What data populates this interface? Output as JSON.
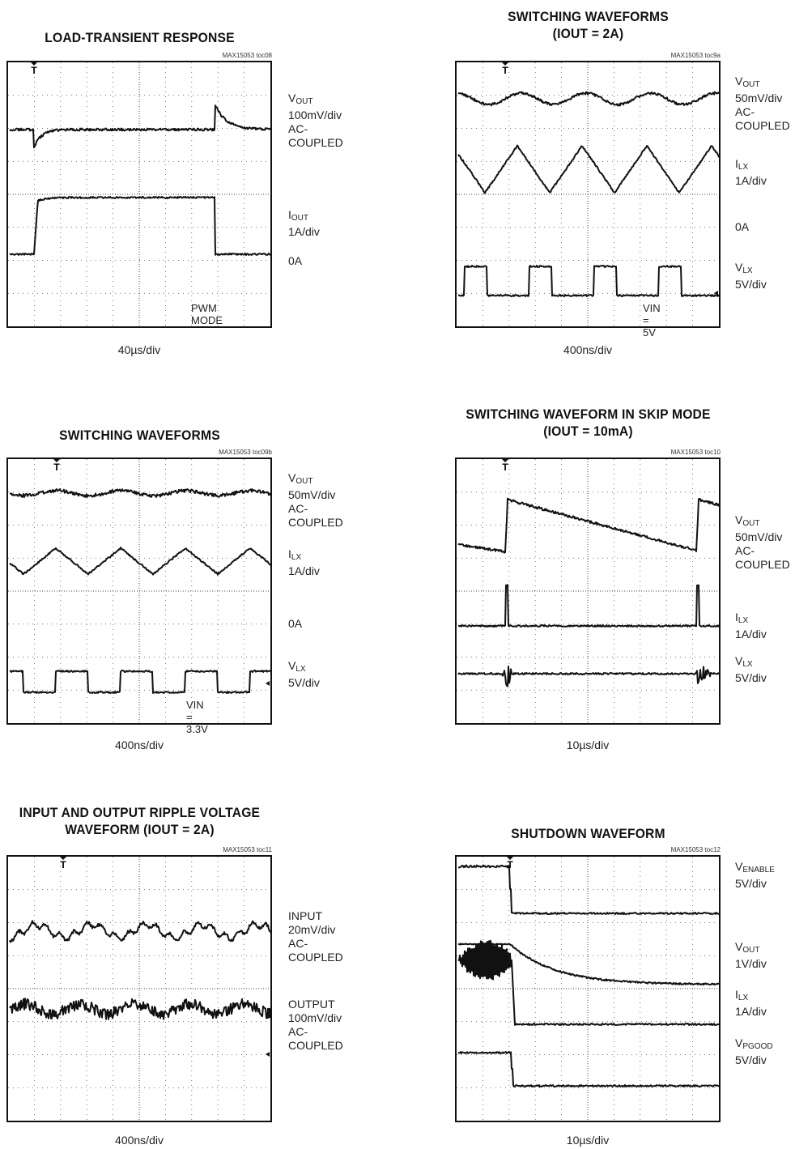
{
  "panels": [
    {
      "title": [
        "LOAD-TRANSIENT RESPONSE"
      ],
      "toc": "MAX15053 toc08",
      "timebase": "40µs/div",
      "inset": "PWM MODE",
      "labels": [
        {
          "main": "V",
          "sub": "OUT",
          "lines": [
            "100mV/div",
            "AC-COUPLED"
          ]
        },
        {
          "main": "I",
          "sub": "OUT",
          "lines": [
            "1A/div"
          ]
        },
        {
          "main": "0A",
          "sub": "",
          "lines": []
        }
      ]
    },
    {
      "title": [
        "SWITCHING WAVEFORMS",
        "(IOUT = 2A)"
      ],
      "toc": "MAX15053 toc9a",
      "timebase": "400ns/div",
      "inset": "VIN = 5V",
      "labels": [
        {
          "main": "V",
          "sub": "OUT",
          "lines": [
            "50mV/div",
            "AC-COUPLED"
          ]
        },
        {
          "main": "I",
          "sub": "LX",
          "lines": [
            "1A/div"
          ]
        },
        {
          "main": "0A",
          "sub": "",
          "lines": []
        },
        {
          "main": "V",
          "sub": "LX",
          "lines": [
            "5V/div"
          ]
        }
      ]
    },
    {
      "title": [
        "SWITCHING WAVEFORMS"
      ],
      "toc": "MAX15053 toc09b",
      "timebase": "400ns/div",
      "inset": "VIN = 3.3V",
      "labels": [
        {
          "main": "V",
          "sub": "OUT",
          "lines": [
            "50mV/div",
            "AC-COUPLED"
          ]
        },
        {
          "main": "I",
          "sub": "LX",
          "lines": [
            "1A/div"
          ]
        },
        {
          "main": "0A",
          "sub": "",
          "lines": []
        },
        {
          "main": "V",
          "sub": "LX",
          "lines": [
            "5V/div"
          ]
        }
      ]
    },
    {
      "title": [
        "SWITCHING WAVEFORM IN SKIP MODE",
        "(IOUT = 10mA)"
      ],
      "toc": "MAX15053 toc10",
      "timebase": "10µs/div",
      "inset": "",
      "labels": [
        {
          "main": "V",
          "sub": "OUT",
          "lines": [
            "50mV/div",
            "AC-COUPLED"
          ]
        },
        {
          "main": "I",
          "sub": "LX",
          "lines": [
            "1A/div"
          ]
        },
        {
          "main": "V",
          "sub": "LX",
          "lines": [
            "5V/div"
          ]
        }
      ]
    },
    {
      "title": [
        "INPUT AND OUTPUT RIPPLE VOLTAGE",
        "WAVEFORM (IOUT = 2A)"
      ],
      "toc": "MAX15053 toc11",
      "timebase": "400ns/div",
      "inset": "",
      "labels": [
        {
          "main": "INPUT",
          "sub": "",
          "lines": [
            "20mV/div",
            "AC-COUPLED"
          ]
        },
        {
          "main": "OUTPUT",
          "sub": "",
          "lines": [
            "100mV/div",
            "AC-COUPLED"
          ]
        }
      ]
    },
    {
      "title": [
        "SHUTDOWN WAVEFORM"
      ],
      "toc": "MAX15053 toc12",
      "timebase": "10µs/div",
      "inset": "",
      "labels": [
        {
          "main": "V",
          "sub": "ENABLE",
          "lines": [
            "5V/div"
          ]
        },
        {
          "main": "V",
          "sub": "OUT",
          "lines": [
            "1V/div"
          ]
        },
        {
          "main": "I",
          "sub": "LX",
          "lines": [
            "1A/div"
          ]
        },
        {
          "main": "V",
          "sub": "PGOOD",
          "lines": [
            "5V/div"
          ]
        }
      ]
    }
  ],
  "chart_data": [
    {
      "type": "line",
      "title": "LOAD-TRANSIENT RESPONSE",
      "xlabel": "40µs/div",
      "grid": true,
      "series": [
        {
          "name": "VOUT",
          "description_values": "step response with undershoot at load step up and overshoot at load step down"
        },
        {
          "name": "IOUT",
          "values": [
            0,
            2,
            2,
            2,
            2,
            2,
            2,
            0,
            0,
            0
          ]
        }
      ]
    },
    {
      "type": "line",
      "title": "SWITCHING WAVEFORMS (IOUT = 2A)",
      "xlabel": "400ns/div",
      "grid": true,
      "series": [
        {
          "name": "VOUT"
        },
        {
          "name": "ILX"
        },
        {
          "name": "VLX"
        }
      ]
    },
    {
      "type": "line",
      "title": "SWITCHING WAVEFORMS",
      "xlabel": "400ns/div",
      "grid": true,
      "series": [
        {
          "name": "VOUT"
        },
        {
          "name": "ILX"
        },
        {
          "name": "VLX"
        }
      ]
    },
    {
      "type": "line",
      "title": "SWITCHING WAVEFORM IN SKIP MODE (IOUT = 10mA)",
      "xlabel": "10µs/div",
      "grid": true,
      "series": [
        {
          "name": "VOUT"
        },
        {
          "name": "ILX"
        },
        {
          "name": "VLX"
        }
      ]
    },
    {
      "type": "line",
      "title": "INPUT AND OUTPUT RIPPLE VOLTAGE WAVEFORM (IOUT = 2A)",
      "xlabel": "400ns/div",
      "grid": true,
      "series": [
        {
          "name": "INPUT"
        },
        {
          "name": "OUTPUT"
        }
      ]
    },
    {
      "type": "line",
      "title": "SHUTDOWN WAVEFORM",
      "xlabel": "10µs/div",
      "grid": true,
      "series": [
        {
          "name": "VENABLE"
        },
        {
          "name": "VOUT"
        },
        {
          "name": "ILX"
        },
        {
          "name": "VPGOOD"
        }
      ]
    }
  ]
}
